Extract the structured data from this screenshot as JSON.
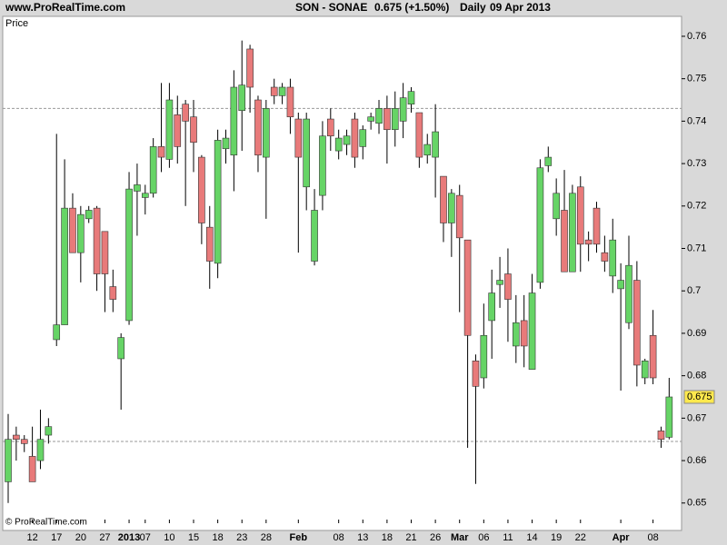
{
  "header": {
    "site": "www.ProRealTime.com",
    "symbol": "SON - SONAE",
    "quote": "0.675 (+1.50%)",
    "period": "Daily",
    "date": "09 Apr 2013"
  },
  "chart_data": {
    "type": "candlestick",
    "panel_label": "Price",
    "footer": "© ProRealTime.com",
    "categories": [
      null,
      null,
      null,
      "12",
      null,
      null,
      "17",
      null,
      null,
      "20",
      null,
      null,
      "27",
      null,
      null,
      "2013",
      null,
      "07",
      null,
      null,
      "10",
      null,
      null,
      "15",
      null,
      null,
      "18",
      null,
      null,
      "23",
      null,
      null,
      "28",
      null,
      null,
      null,
      "Feb",
      null,
      null,
      null,
      null,
      "08",
      null,
      null,
      "13",
      null,
      null,
      "18",
      null,
      null,
      "21",
      null,
      null,
      "26",
      null,
      null,
      "Mar",
      null,
      null,
      "06",
      null,
      null,
      "11",
      null,
      null,
      "14",
      null,
      null,
      "19",
      null,
      null,
      "22",
      null,
      null,
      null,
      null,
      "Apr",
      null,
      null,
      null,
      "08",
      null,
      null
    ],
    "open": [
      0.655,
      0.666,
      0.665,
      0.661,
      0.66,
      0.666,
      0.6885,
      0.692,
      0.7195,
      0.709,
      0.717,
      0.7195,
      0.714,
      0.701,
      0.684,
      0.693,
      0.7235,
      0.722,
      0.723,
      0.734,
      0.731,
      0.7415,
      0.744,
      0.741,
      0.7315,
      0.715,
      0.7065,
      0.7335,
      0.732,
      0.7425,
      0.757,
      0.745,
      0.7315,
      0.748,
      0.746,
      0.748,
      0.7405,
      0.7245,
      0.707,
      0.7225,
      0.7405,
      0.733,
      0.7345,
      0.7405,
      0.734,
      0.74,
      0.7395,
      0.743,
      0.738,
      0.74,
      0.744,
      0.742,
      0.732,
      0.7315,
      0.727,
      0.716,
      0.7225,
      0.712,
      0.6835,
      0.6795,
      0.693,
      0.7015,
      0.704,
      0.687,
      0.693,
      0.6815,
      0.702,
      0.7295,
      0.717,
      0.719,
      0.7045,
      0.7245,
      0.712,
      0.7195,
      0.709,
      0.7035,
      0.7005,
      0.6925,
      0.7025,
      0.6795,
      0.6895,
      0.667,
      0.6655
    ],
    "high": [
      0.671,
      0.668,
      0.666,
      0.668,
      0.672,
      0.67,
      0.737,
      0.731,
      0.723,
      0.72,
      0.72,
      0.72,
      0.714,
      0.705,
      0.69,
      0.728,
      0.73,
      0.725,
      0.736,
      0.749,
      0.749,
      0.746,
      0.745,
      0.745,
      0.732,
      0.72,
      0.738,
      0.738,
      0.752,
      0.759,
      0.758,
      0.746,
      0.745,
      0.75,
      0.749,
      0.75,
      0.742,
      0.742,
      0.724,
      0.74,
      0.743,
      0.738,
      0.738,
      0.742,
      0.739,
      0.742,
      0.745,
      0.746,
      0.747,
      0.749,
      0.748,
      0.742,
      0.737,
      0.744,
      0.727,
      0.724,
      0.725,
      0.712,
      0.685,
      0.697,
      0.705,
      0.708,
      0.71,
      0.699,
      0.699,
      0.704,
      0.731,
      0.734,
      0.7265,
      0.7285,
      0.725,
      0.727,
      0.714,
      0.721,
      0.713,
      0.717,
      0.7065,
      0.713,
      0.707,
      0.684,
      0.6955,
      0.668,
      0.6795
    ],
    "low": [
      0.65,
      0.66,
      0.662,
      0.655,
      0.658,
      0.664,
      0.687,
      0.692,
      0.709,
      0.702,
      0.716,
      0.7,
      0.695,
      0.695,
      0.672,
      0.692,
      0.713,
      0.718,
      0.722,
      0.728,
      0.729,
      0.73,
      0.72,
      0.728,
      0.711,
      0.7005,
      0.703,
      0.73,
      0.7235,
      0.733,
      0.742,
      0.728,
      0.717,
      0.744,
      0.744,
      0.737,
      0.709,
      0.719,
      0.706,
      0.719,
      0.733,
      0.731,
      0.732,
      0.729,
      0.731,
      0.738,
      0.737,
      0.73,
      0.734,
      0.736,
      0.742,
      0.729,
      0.73,
      0.722,
      0.7115,
      0.708,
      0.695,
      0.663,
      0.6545,
      0.677,
      0.684,
      0.696,
      0.688,
      0.683,
      0.682,
      0.6815,
      0.7005,
      0.728,
      0.713,
      0.7045,
      0.7045,
      0.7045,
      0.707,
      0.709,
      0.7045,
      0.6995,
      0.6765,
      0.691,
      0.6775,
      0.678,
      0.678,
      0.663,
      0.665
    ],
    "close": [
      0.665,
      0.665,
      0.664,
      0.655,
      0.665,
      0.668,
      0.692,
      0.7195,
      0.709,
      0.718,
      0.719,
      0.704,
      0.704,
      0.698,
      0.689,
      0.724,
      0.725,
      0.723,
      0.734,
      0.7315,
      0.745,
      0.734,
      0.74,
      0.735,
      0.716,
      0.707,
      0.7355,
      0.736,
      0.748,
      0.7485,
      0.748,
      0.732,
      0.743,
      0.746,
      0.748,
      0.741,
      0.7315,
      0.7405,
      0.719,
      0.7365,
      0.7365,
      0.736,
      0.7365,
      0.7315,
      0.738,
      0.741,
      0.743,
      0.738,
      0.743,
      0.7455,
      0.747,
      0.7315,
      0.7345,
      0.7375,
      0.716,
      0.723,
      0.7125,
      0.6895,
      0.6775,
      0.6895,
      0.6995,
      0.7025,
      0.698,
      0.6925,
      0.687,
      0.6995,
      0.729,
      0.7315,
      0.723,
      0.7045,
      0.723,
      0.711,
      0.711,
      0.711,
      0.707,
      0.712,
      0.7025,
      0.706,
      0.6825,
      0.6835,
      0.6795,
      0.665,
      0.675
    ],
    "up_color": "#66d466",
    "down_color": "#e87a7a",
    "last_price": 0.675,
    "last_price_color": "#ffe94d",
    "reference_lines": [
      0.743,
      0.6645
    ],
    "ylim": [
      0.6461,
      0.7647
    ],
    "yticks": [
      0.65,
      0.66,
      0.67,
      0.68,
      0.69,
      0.7,
      0.71,
      0.72,
      0.73,
      0.74,
      0.75,
      0.76
    ]
  }
}
